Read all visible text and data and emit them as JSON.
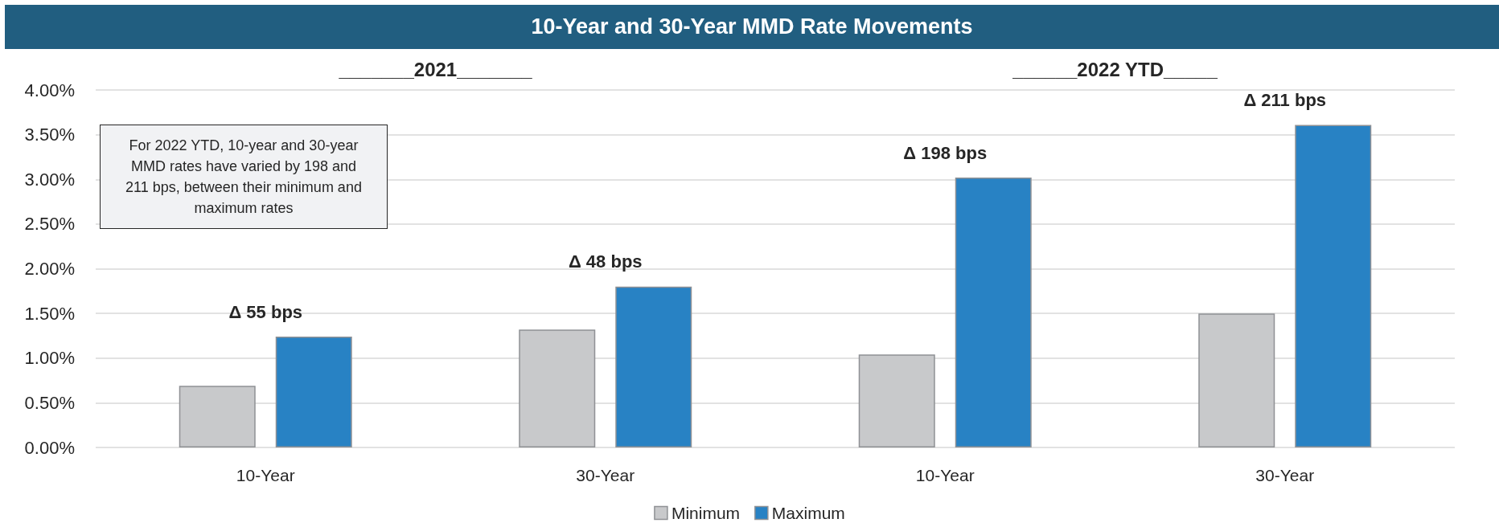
{
  "chart_data": {
    "type": "bar",
    "title": "10-Year and 30-Year MMD Rate Movements",
    "categories": [
      "10-Year",
      "30-Year",
      "10-Year",
      "30-Year"
    ],
    "series": [
      {
        "name": "Minimum",
        "color": "#c8c9cb",
        "values": [
          0.69,
          1.32,
          1.04,
          1.5
        ]
      },
      {
        "name": "Maximum",
        "color": "#2882c4",
        "values": [
          1.24,
          1.8,
          3.02,
          3.61
        ],
        "value_labels": [
          "Δ 55 bps",
          "Δ 48 bps",
          "Δ 198 bps",
          "Δ 211 bps"
        ]
      }
    ],
    "ylim": [
      0,
      4
    ],
    "yticks": [
      {
        "value": 0,
        "label": "0.00%"
      },
      {
        "value": 0.5,
        "label": "0.50%"
      },
      {
        "value": 1,
        "label": "1.00%"
      },
      {
        "value": 1.5,
        "label": "1.50%"
      },
      {
        "value": 2,
        "label": "2.00%"
      },
      {
        "value": 2.5,
        "label": "2.50%"
      },
      {
        "value": 3,
        "label": "3.00%"
      },
      {
        "value": 3.5,
        "label": "3.50%"
      },
      {
        "value": 4,
        "label": "4.00%"
      }
    ],
    "grid": "y",
    "legend": "bottom",
    "annotations": [
      "_______2021_______",
      "______2022 YTD_____",
      "For 2022 YTD, 10-year and 30-year MMD rates have varied by 198 and 211 bps, between their minimum and maximum rates"
    ]
  }
}
